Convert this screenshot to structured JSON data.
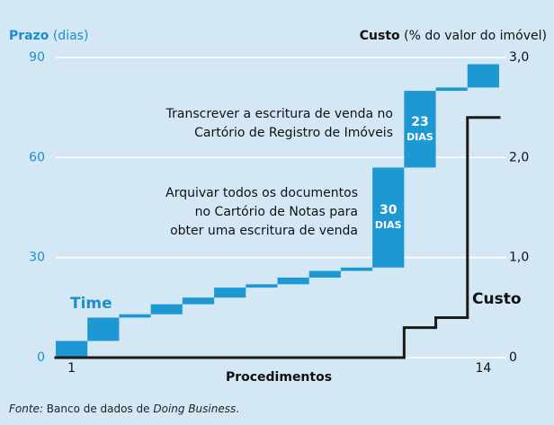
{
  "chart_data": {
    "type": "waterfall-step",
    "y_label": {
      "bold": "Prazo",
      "rest": " (dias)"
    },
    "y2_label": {
      "bold": "Custo",
      "rest": " (% do valor do imóvel)"
    },
    "x_label": "Procedimentos",
    "categories": [
      "1",
      null,
      null,
      null,
      null,
      null,
      null,
      null,
      null,
      null,
      null,
      null,
      null,
      "14"
    ],
    "series": [
      {
        "name": "Time",
        "color": "#1e98d3",
        "values": [
          5,
          7,
          1,
          3,
          2,
          3,
          1,
          2,
          2,
          1,
          30,
          23,
          1,
          7
        ],
        "value_labels": [
          null,
          null,
          null,
          null,
          null,
          null,
          null,
          null,
          null,
          null,
          "30",
          "23",
          null,
          null
        ]
      },
      {
        "name": "Custo",
        "color": "#1a1a1a",
        "axis": "y2",
        "values": [
          0,
          0,
          0,
          0,
          0,
          0,
          0,
          0,
          0,
          0,
          0,
          0.3,
          0.4,
          2.4
        ]
      }
    ],
    "value_label_unit": "DIAS",
    "ylim": [
      0,
      90
    ],
    "yticks": [
      0,
      30,
      60,
      90
    ],
    "y2lim": [
      0,
      3
    ],
    "y2ticks": [
      {
        "value": 0,
        "label": "0"
      },
      {
        "value": 1,
        "label": "1,0"
      },
      {
        "value": 2,
        "label": "2,0"
      },
      {
        "value": 3,
        "label": "3,0"
      }
    ],
    "grid": true,
    "annotations": [
      {
        "lines": [
          "Transcrever a escritura de venda no",
          "Cartório de Registro de Imóveis"
        ]
      },
      {
        "lines": [
          "Arquivar todos os documentos",
          "no Cartório de Notas para",
          "obter uma escritura de venda"
        ]
      }
    ],
    "source": {
      "label": "Fonte:",
      "text": " Banco de dados de ",
      "name": "Doing Business",
      "end": "."
    }
  }
}
